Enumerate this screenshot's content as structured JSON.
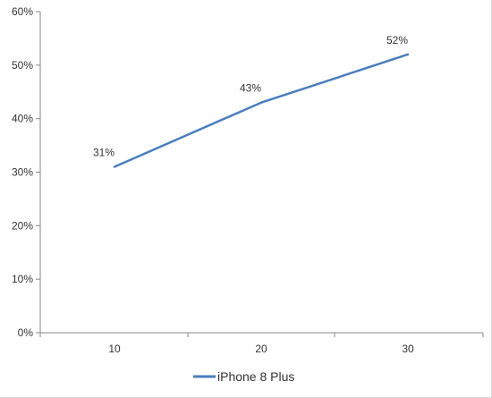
{
  "chart_data": {
    "type": "line",
    "x": [
      "10",
      "20",
      "30"
    ],
    "series": [
      {
        "name": "iPhone 8 Plus",
        "values": [
          0.31,
          0.43,
          0.52
        ],
        "data_labels": [
          "31%",
          "43%",
          "52%"
        ],
        "color": "#4a7ebb"
      }
    ],
    "y_ticks": [
      0,
      0.1,
      0.2,
      0.3,
      0.4,
      0.5,
      0.6
    ],
    "y_tick_labels": [
      "0%",
      "10%",
      "20%",
      "30%",
      "40%",
      "50%",
      "60%"
    ],
    "x_tick_labels": [
      "10",
      "20",
      "30"
    ],
    "ylim": [
      0,
      0.6
    ],
    "grid": false,
    "legend_position": "bottom",
    "axis_color": "#868686"
  }
}
